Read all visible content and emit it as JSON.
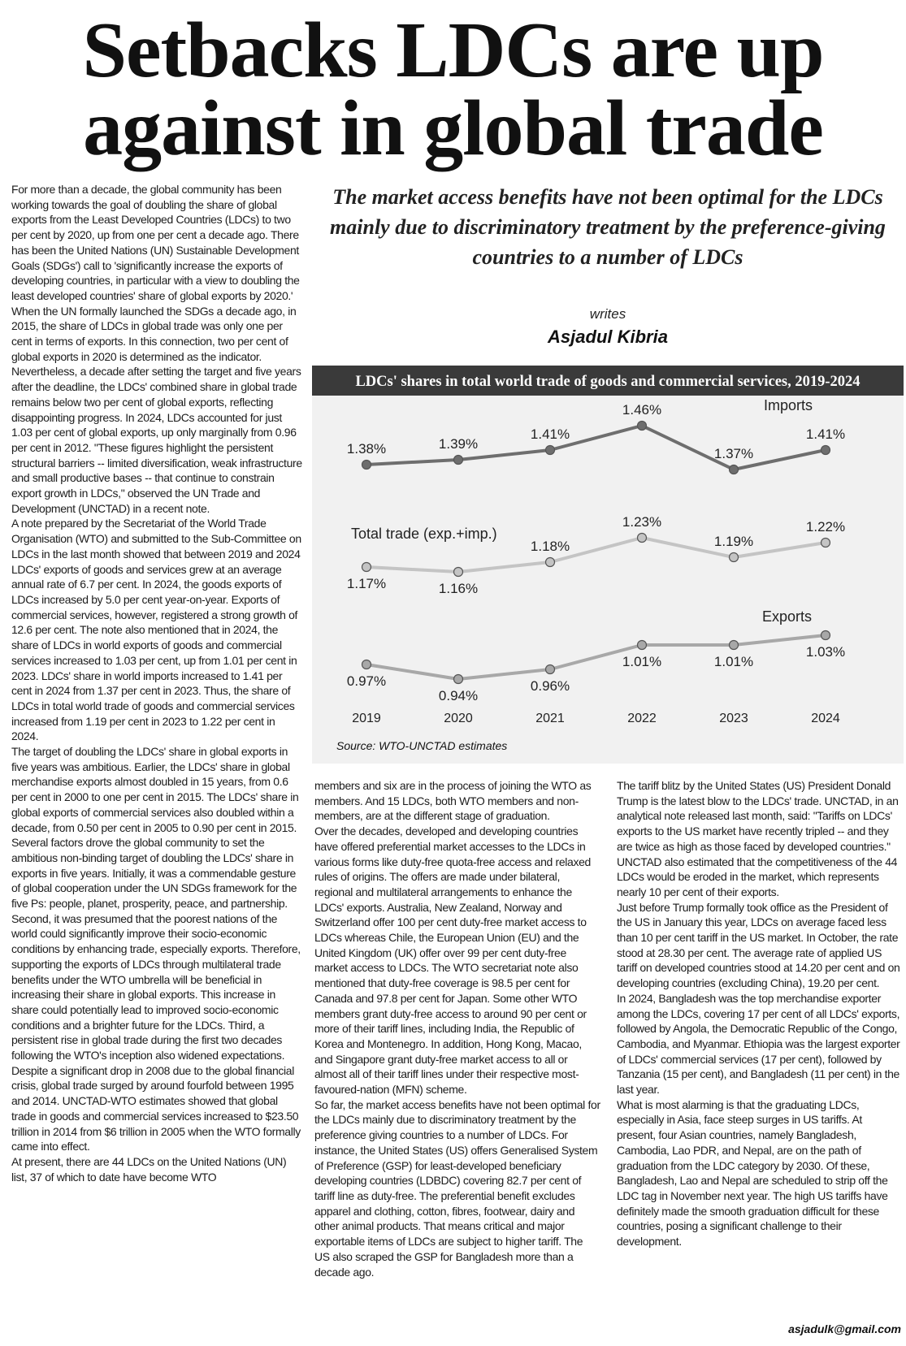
{
  "headline": [
    "Setbacks LDCs are up",
    "against in global trade"
  ],
  "subheading": "The market access benefits have not been optimal for the LDCs mainly due to discriminatory treatment by the preference-giving countries to a number of LDCs",
  "byline": {
    "writes": "writes",
    "author": "Asjadul Kibria"
  },
  "columns": {
    "left": [
      "For more than a decade, the global community has been working towards the goal of doubling the share of global exports from the Least Developed Countries (LDCs) to two per cent by 2020, up from one per cent a decade ago. There has been the United Nations (UN) Sustainable Development Goals (SDGs') call to 'significantly increase the exports of developing countries, in particular with a view to doubling the least developed countries' share of global exports by 2020.' When the UN formally launched the SDGs a decade ago, in 2015, the share of LDCs in global trade was only one per cent in terms of exports. In this connection, two per cent of global exports in 2020 is determined as the indicator.",
      "Nevertheless, a decade after setting the target and five years after the deadline, the LDCs' combined share in global trade remains below two per cent of global exports, reflecting disappointing progress. In 2024, LDCs accounted for just 1.03 per cent of global exports, up only marginally from 0.96 per cent in 2012. \"These figures highlight the persistent structural barriers -- limited diversification, weak infrastructure and small productive bases -- that continue to constrain export growth in LDCs,\" observed the UN Trade and Development (UNCTAD) in a recent note.",
      "A note prepared by the Secretariat of the World Trade Organisation (WTO) and submitted to the Sub-Committee on LDCs in the last month showed that between 2019 and 2024 LDCs' exports of goods and services grew at an average annual rate of 6.7 per cent. In 2024, the goods exports of LDCs increased by 5.0 per cent year-on-year. Exports of commercial services, however, registered a strong growth of 12.6 per cent. The note also mentioned that in 2024, the share of LDCs in world exports of goods and commercial services increased to 1.03 per cent, up from 1.01 per cent in 2023. LDCs' share in world imports increased to 1.41 per cent in 2024 from 1.37 per cent in 2023. Thus, the share of LDCs in total world trade of goods and commercial services increased from 1.19 per cent in 2023 to 1.22 per cent in 2024.",
      "The target of doubling the LDCs' share in global exports in five years was ambitious. Earlier, the LDCs' share in global merchandise exports almost doubled in 15 years, from 0.6 per cent in 2000 to one per cent in 2015. The LDCs' share in global exports of commercial services also doubled within a decade, from 0.50 per cent in 2005 to 0.90 per cent in 2015.",
      "Several factors drove the global community to set the ambitious non-binding target of doubling the LDCs' share in exports in five years. Initially, it was a commendable gesture of global cooperation under the UN SDGs framework for the five Ps: people, planet, prosperity, peace, and partnership. Second, it was presumed that the poorest nations of the world could significantly improve their socio-economic conditions by enhancing trade, especially exports. Therefore, supporting the exports of LDCs through multilateral trade benefits under the WTO umbrella will be beneficial in increasing their share in global exports. This increase in share could potentially lead to improved socio-economic conditions and a brighter future for the LDCs. Third, a persistent rise in global trade during the first two decades following the WTO's inception also widened expectations. Despite a significant drop in 2008 due to the global financial crisis, global trade surged by around fourfold between 1995 and 2014. UNCTAD-WTO estimates showed that global trade in goods and commercial services increased to $23.50 trillion in 2014 from $6 trillion in 2005 when the WTO formally came into effect.",
      "At present, there are 44 LDCs on the United Nations (UN) list, 37 of which to date have become WTO"
    ],
    "middle": [
      "members and six are in the process of joining the WTO as members.  And 15 LDCs, both WTO members and non-members, are at the different stage of graduation.",
      "Over the decades, developed and developing countries have offered preferential market accesses to the LDCs in various forms like duty-free quota-free access and relaxed rules of origins. The offers are made under bilateral, regional and multilateral arrangements to enhance the LDCs' exports. Australia, New Zealand, Norway and Switzerland offer 100 per cent duty-free market access to LDCs whereas Chile, the European Union (EU) and the United Kingdom (UK) offer over 99 per cent duty-free market access to LDCs. The WTO secretariat note also mentioned that duty-free coverage is 98.5 per cent for Canada and 97.8 per cent for Japan. Some other WTO members grant duty-free access to around 90 per cent or more of their tariff lines, including India, the Republic of Korea and Montenegro. In addition, Hong Kong, Macao, and Singapore grant duty-free market access to all or almost all of their tariff lines under their respective most-favoured-nation (MFN) scheme.",
      "So far, the market access benefits have not been optimal for the LDCs mainly due to discriminatory treatment by the preference giving countries to a number of LDCs. For instance, the United States (US) offers Generalised System of Preference (GSP) for least-developed beneficiary developing countries (LDBDC) covering 82.7 per cent of tariff line as duty-free. The preferential benefit excludes apparel and clothing, cotton, fibres, footwear, dairy and other animal products. That means critical and major exportable items of LDCs are subject to higher tariff. The US also scraped the GSP for Bangladesh more than a decade ago."
    ],
    "right": [
      "The tariff blitz by the United States (US) President Donald Trump is the latest blow to the LDCs' trade. UNCTAD, in an analytical note released last month, said: \"Tariffs on LDCs' exports to the US market have recently tripled -- and they are twice as high as those faced by developed countries.\" UNCTAD also estimated that the competitiveness of the 44 LDCs would be eroded in the market, which represents nearly 10 per cent of their exports.",
      "Just before Trump formally took office as the President of the US in January this year, LDCs on average faced less than 10 per cent tariff in the US market. In October, the rate stood at 28.30 per cent. The average rate of applied US tariff on developed countries stood at 14.20 per cent and on developing countries (excluding China), 19.20 per cent.",
      "In 2024, Bangladesh was the top merchandise exporter among the LDCs, covering 17 per cent of all LDCs' exports, followed by Angola, the Democratic Republic of the Congo, Cambodia, and Myanmar. Ethiopia was the largest exporter of LDCs' commercial services (17 per cent), followed by Tanzania (15 per cent), and Bangladesh (11 per cent) in the last year.",
      "What is most alarming is that the graduating LDCs, especially in Asia, face steep surges in US tariffs. At present, four Asian countries, namely Bangladesh, Cambodia, Lao PDR, and Nepal, are on the path of graduation from the LDC category by 2030. Of these, Bangladesh,  Lao and Nepal are scheduled to strip off the LDC tag in November next year. The high US tariffs have definitely made the smooth graduation difficult for these countries, posing a significant challenge to their development."
    ]
  },
  "email": "asjadulk@gmail.com",
  "chart_data": {
    "type": "line",
    "title": "LDCs' shares in total world trade of goods and commercial services, 2019-2024",
    "source": "Source: WTO-UNCTAD estimates",
    "categories": [
      "2019",
      "2020",
      "2021",
      "2022",
      "2023",
      "2024"
    ],
    "series": [
      {
        "name": "Imports",
        "values": [
          1.38,
          1.39,
          1.41,
          1.46,
          1.37,
          1.41
        ],
        "labels": [
          "1.38%",
          "1.39%",
          "1.41%",
          "1.46%",
          "1.37%",
          "1.41%"
        ],
        "color": "#6e6e6e"
      },
      {
        "name": "Total trade (exp.+imp.)",
        "values": [
          1.17,
          1.16,
          1.18,
          1.23,
          1.19,
          1.22
        ],
        "labels": [
          "1.17%",
          "1.16%",
          "1.18%",
          "1.23%",
          "1.19%",
          "1.22%"
        ],
        "color": "#c4c4c4"
      },
      {
        "name": "Exports",
        "values": [
          0.97,
          0.94,
          0.96,
          1.01,
          1.01,
          1.03
        ],
        "labels": [
          "0.97%",
          "0.94%",
          "0.96%",
          "1.01%",
          "1.01%",
          "1.03%"
        ],
        "color": "#a8a8a8"
      }
    ],
    "unit": "%",
    "grid": false,
    "colors": {
      "title_bar": "#3a3a3a",
      "title_text": "#ffffff",
      "background": "#f1f1f1"
    }
  }
}
